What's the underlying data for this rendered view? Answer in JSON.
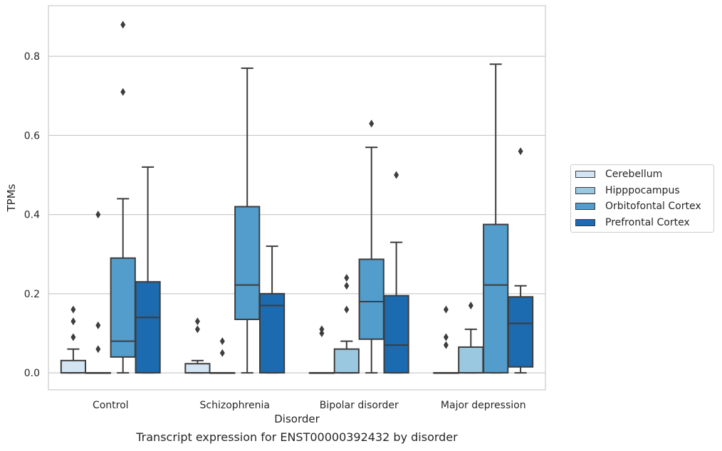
{
  "chart_data": {
    "type": "box",
    "title": "",
    "caption": "Transcript expression for ENST00000392432 by disorder",
    "xlabel": "Disorder",
    "ylabel": "TPMs",
    "ylim": [
      -0.043,
      0.928
    ],
    "yticks": [
      0.0,
      0.2,
      0.4,
      0.6,
      0.8
    ],
    "ytick_labels": [
      "0.0",
      "0.2",
      "0.4",
      "0.6",
      "0.8"
    ],
    "grid": "horizontal",
    "legend_position": "right",
    "categories": [
      "Control",
      "Schizophrenia",
      "Bipolar disorder",
      "Major depression"
    ],
    "series": [
      {
        "name": "Cerebellum",
        "color": "#d3e4f3",
        "boxes": [
          {
            "whislo": 0.0,
            "q1": 0.0,
            "med": 0.0,
            "q3": 0.031,
            "whishi": 0.06,
            "fliers": [
              0.09,
              0.13,
              0.16
            ]
          },
          {
            "whislo": 0.0,
            "q1": 0.0,
            "med": 0.0,
            "q3": 0.023,
            "whishi": 0.031,
            "fliers": [
              0.11,
              0.13
            ]
          },
          {
            "whislo": 0.0,
            "q1": 0.0,
            "med": 0.0,
            "q3": 0.0,
            "whishi": 0.0,
            "fliers": [
              0.1,
              0.11
            ]
          },
          {
            "whislo": 0.0,
            "q1": 0.0,
            "med": 0.0,
            "q3": 0.0,
            "whishi": 0.0,
            "fliers": [
              0.07,
              0.09,
              0.16
            ]
          }
        ]
      },
      {
        "name": "Hipppocampus",
        "color": "#9ac8e0",
        "boxes": [
          {
            "whislo": 0.0,
            "q1": 0.0,
            "med": 0.0,
            "q3": 0.0,
            "whishi": 0.0,
            "fliers": [
              0.06,
              0.12,
              0.4
            ]
          },
          {
            "whislo": 0.0,
            "q1": 0.0,
            "med": 0.0,
            "q3": 0.0,
            "whishi": 0.0,
            "fliers": [
              0.05,
              0.08
            ]
          },
          {
            "whislo": 0.0,
            "q1": 0.0,
            "med": 0.0,
            "q3": 0.06,
            "whishi": 0.08,
            "fliers": [
              0.16,
              0.22,
              0.24
            ]
          },
          {
            "whislo": 0.0,
            "q1": 0.0,
            "med": 0.0,
            "q3": 0.065,
            "whishi": 0.11,
            "fliers": [
              0.17
            ]
          }
        ]
      },
      {
        "name": "Orbitofontal Cortex",
        "color": "#529dcc",
        "boxes": [
          {
            "whislo": 0.0,
            "q1": 0.04,
            "med": 0.08,
            "q3": 0.29,
            "whishi": 0.44,
            "fliers": [
              0.71,
              0.88
            ]
          },
          {
            "whislo": 0.0,
            "q1": 0.135,
            "med": 0.222,
            "q3": 0.42,
            "whishi": 0.77,
            "fliers": []
          },
          {
            "whislo": 0.0,
            "q1": 0.085,
            "med": 0.18,
            "q3": 0.287,
            "whishi": 0.57,
            "fliers": [
              0.63
            ]
          },
          {
            "whislo": 0.0,
            "q1": 0.0,
            "med": 0.222,
            "q3": 0.375,
            "whishi": 0.78,
            "fliers": []
          }
        ]
      },
      {
        "name": "Prefrontal Cortex",
        "color": "#1c6aaf",
        "boxes": [
          {
            "whislo": 0.0,
            "q1": 0.0,
            "med": 0.14,
            "q3": 0.23,
            "whishi": 0.52,
            "fliers": []
          },
          {
            "whislo": 0.0,
            "q1": 0.0,
            "med": 0.17,
            "q3": 0.2,
            "whishi": 0.32,
            "fliers": []
          },
          {
            "whislo": 0.0,
            "q1": 0.0,
            "med": 0.07,
            "q3": 0.195,
            "whishi": 0.33,
            "fliers": [
              0.5
            ]
          },
          {
            "whislo": 0.0,
            "q1": 0.015,
            "med": 0.125,
            "q3": 0.192,
            "whishi": 0.22,
            "fliers": [
              0.56
            ]
          }
        ]
      }
    ]
  }
}
